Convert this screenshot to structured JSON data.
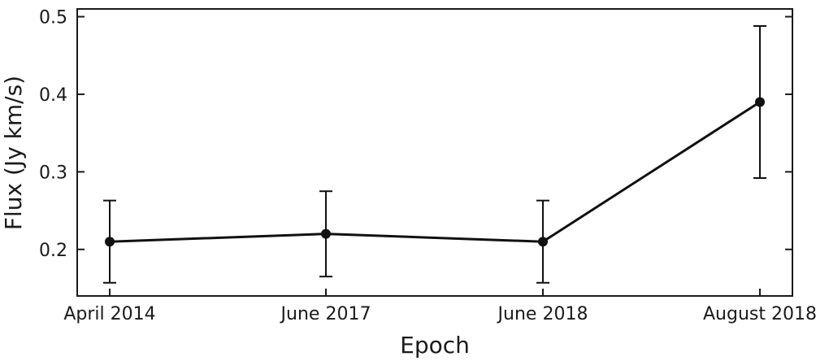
{
  "chart_data": {
    "type": "line",
    "title": "",
    "xlabel": "Epoch",
    "ylabel": "Flux (Jy km/s)",
    "categories": [
      "April 2014",
      "June 2017",
      "June 2018",
      "August 2018"
    ],
    "series": [
      {
        "values": [
          0.21,
          0.22,
          0.21,
          0.39
        ],
        "errors": [
          0.053,
          0.055,
          0.053,
          0.098
        ]
      }
    ],
    "ylim": [
      0.14,
      0.51
    ],
    "yticks": [
      0.2,
      0.3,
      0.4,
      0.5
    ],
    "ytick_labels": [
      "0.2",
      "0.3",
      "0.4",
      "0.5"
    ],
    "grid": false,
    "line_color": "#111111"
  }
}
